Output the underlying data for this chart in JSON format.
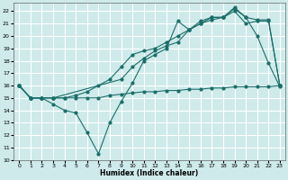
{
  "xlabel": "Humidex (Indice chaleur)",
  "bg_color": "#ceeaea",
  "grid_color": "#ffffff",
  "line_color": "#1a6e6a",
  "xlim": [
    -0.5,
    23.5
  ],
  "ylim": [
    10,
    22.7
  ],
  "yticks": [
    10,
    11,
    12,
    13,
    14,
    15,
    16,
    17,
    18,
    19,
    20,
    21,
    22
  ],
  "xticks": [
    0,
    1,
    2,
    3,
    4,
    5,
    6,
    7,
    8,
    9,
    10,
    11,
    12,
    13,
    14,
    15,
    16,
    17,
    18,
    19,
    20,
    21,
    22,
    23
  ],
  "line1_x": [
    0,
    1,
    2,
    3,
    4,
    5,
    6,
    7,
    8,
    9,
    10,
    11,
    12,
    13,
    14,
    15,
    16,
    17,
    18,
    19,
    20,
    21,
    22,
    23
  ],
  "line1_y": [
    16.0,
    15.0,
    15.0,
    15.0,
    15.0,
    15.0,
    15.0,
    15.0,
    15.2,
    15.3,
    15.4,
    15.5,
    15.5,
    15.6,
    15.6,
    15.7,
    15.7,
    15.8,
    15.8,
    15.9,
    15.9,
    15.9,
    15.9,
    16.0
  ],
  "line2_x": [
    0,
    1,
    2,
    3,
    4,
    5,
    6,
    7,
    8,
    9,
    10,
    11,
    12,
    13,
    14,
    15,
    16,
    17,
    18,
    19,
    20,
    21,
    22,
    23
  ],
  "line2_y": [
    16.0,
    15.0,
    15.0,
    14.5,
    14.0,
    13.8,
    12.2,
    10.5,
    13.0,
    14.7,
    16.2,
    18.0,
    18.5,
    19.0,
    21.2,
    20.5,
    21.2,
    21.5,
    21.5,
    22.3,
    21.5,
    20.0,
    17.8,
    15.9
  ],
  "line3_x": [
    0,
    1,
    2,
    3,
    9,
    10,
    11,
    12,
    13,
    14,
    15,
    16,
    17,
    18,
    19,
    20,
    21,
    22,
    23
  ],
  "line3_y": [
    16.0,
    15.0,
    15.0,
    15.0,
    16.5,
    17.5,
    18.2,
    18.8,
    19.2,
    19.5,
    20.5,
    21.0,
    21.5,
    21.5,
    22.0,
    21.0,
    21.2,
    21.2,
    16.0
  ],
  "line4_x": [
    0,
    1,
    2,
    3,
    4,
    5,
    6,
    7,
    8,
    9,
    10,
    11,
    12,
    13,
    14,
    15,
    16,
    17,
    18,
    19,
    20,
    21,
    22,
    23
  ],
  "line4_y": [
    16.0,
    15.0,
    15.0,
    15.0,
    15.0,
    15.2,
    15.5,
    16.0,
    16.5,
    17.5,
    18.5,
    18.8,
    19.0,
    19.5,
    20.0,
    20.5,
    21.0,
    21.3,
    21.5,
    22.2,
    21.5,
    21.3,
    21.3,
    16.0
  ]
}
